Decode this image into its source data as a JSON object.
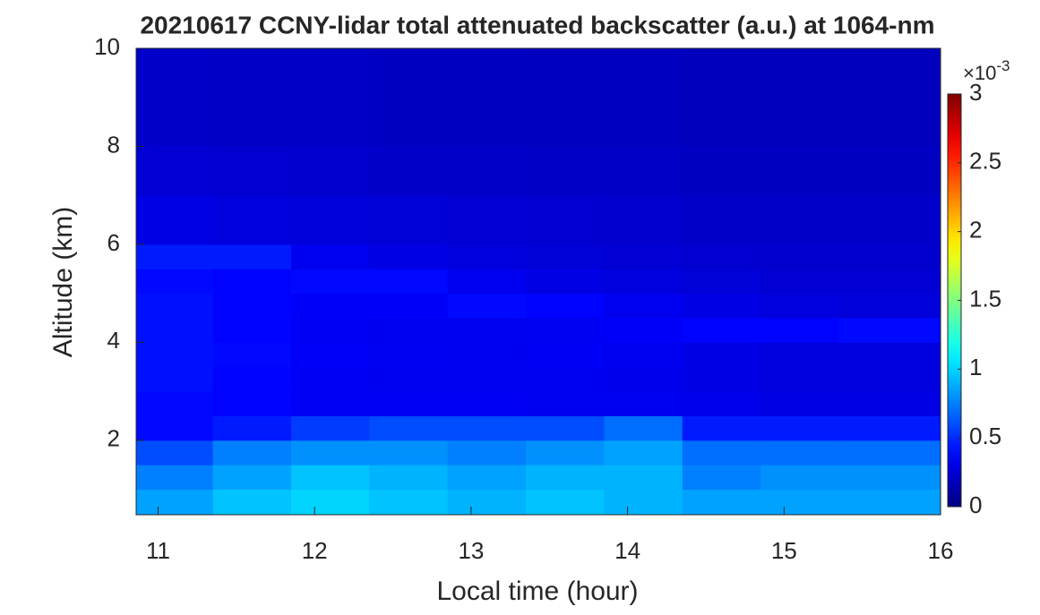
{
  "chart_data": {
    "type": "heatmap",
    "title": "20210617 CCNY-lidar total attenuated backscatter (a.u.) at 1064-nm",
    "x_label": "Local time (hour)",
    "y_label": "Altitude (km)",
    "xlim": [
      10.86,
      16
    ],
    "ylim": [
      0.48,
      10
    ],
    "xticks": [
      11,
      12,
      13,
      14,
      15,
      16
    ],
    "yticks": [
      2,
      4,
      6,
      8,
      10
    ],
    "x_edges": [
      10.86,
      11.35,
      11.85,
      12.35,
      12.85,
      13.35,
      13.85,
      14.35,
      14.85,
      15.35,
      16
    ],
    "y_edges": [
      0.48,
      1,
      1.5,
      2,
      2.5,
      3,
      3.5,
      4,
      4.5,
      5,
      5.5,
      6,
      7,
      8,
      10
    ],
    "z": [
      [
        0.85,
        0.95,
        1.0,
        0.95,
        0.9,
        0.95,
        0.9,
        0.85,
        0.85,
        0.85
      ],
      [
        0.75,
        0.85,
        0.95,
        0.9,
        0.85,
        0.9,
        0.9,
        0.75,
        0.8,
        0.8
      ],
      [
        0.6,
        0.75,
        0.8,
        0.8,
        0.75,
        0.8,
        0.85,
        0.7,
        0.7,
        0.7
      ],
      [
        0.4,
        0.45,
        0.55,
        0.6,
        0.6,
        0.6,
        0.7,
        0.45,
        0.45,
        0.45
      ],
      [
        0.4,
        0.38,
        0.35,
        0.35,
        0.35,
        0.33,
        0.33,
        0.32,
        0.3,
        0.3
      ],
      [
        0.42,
        0.38,
        0.35,
        0.33,
        0.33,
        0.33,
        0.32,
        0.3,
        0.28,
        0.28
      ],
      [
        0.42,
        0.4,
        0.36,
        0.34,
        0.33,
        0.35,
        0.33,
        0.3,
        0.28,
        0.28
      ],
      [
        0.42,
        0.38,
        0.35,
        0.33,
        0.33,
        0.34,
        0.36,
        0.38,
        0.38,
        0.4
      ],
      [
        0.42,
        0.38,
        0.36,
        0.36,
        0.4,
        0.38,
        0.33,
        0.3,
        0.28,
        0.27
      ],
      [
        0.4,
        0.38,
        0.4,
        0.4,
        0.33,
        0.3,
        0.28,
        0.26,
        0.25,
        0.25
      ],
      [
        0.45,
        0.45,
        0.33,
        0.3,
        0.28,
        0.26,
        0.25,
        0.24,
        0.23,
        0.23
      ],
      [
        0.3,
        0.28,
        0.27,
        0.26,
        0.25,
        0.24,
        0.23,
        0.22,
        0.22,
        0.22
      ],
      [
        0.25,
        0.24,
        0.23,
        0.22,
        0.22,
        0.21,
        0.21,
        0.2,
        0.2,
        0.2
      ],
      [
        0.22,
        0.21,
        0.21,
        0.2,
        0.2,
        0.19,
        0.19,
        0.18,
        0.18,
        0.18
      ]
    ],
    "colormap": "jet",
    "clim": [
      0,
      3
    ],
    "cticks": [
      0,
      0.5,
      1,
      1.5,
      2,
      2.5,
      3
    ],
    "colorbar_multiplier": {
      "base": "×10",
      "exponent": "-3"
    }
  }
}
